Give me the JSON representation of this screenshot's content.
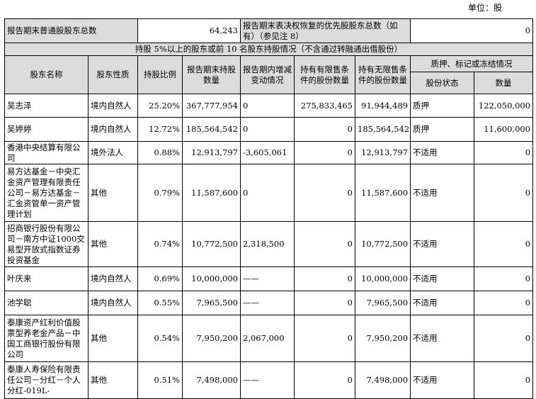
{
  "unit_label": "单位：股",
  "summary": {
    "common_label": "报告期末普通股股东总数",
    "common_value": "64,243",
    "preferred_label": "报告期末表决权恢复的优先股股东总数（如有）（参见注 8）",
    "preferred_value": "0"
  },
  "section_title": "持股 5%以上的股东或前 10 名股东持股情况（不含通过转融通出借股份）",
  "headers": {
    "name": "股东名称",
    "nature": "股东性质",
    "ratio": "持股比例",
    "shares_end": "报告期末持股数量",
    "change": "报告期内增减变动情况",
    "restricted": "持有有限售条件的股份数量",
    "unrestricted": "持有无限售条件的股份数量",
    "pledge_group": "质押、标记或冻结情况",
    "pledge_status": "股份状态",
    "pledge_qty": "数量"
  },
  "rows": [
    {
      "name": "吴志泽",
      "nature": "境内自然人",
      "ratio": "25.20%",
      "shares": "367,777,954",
      "change": "0",
      "restricted": "275,833,465",
      "unrestricted": "91,944,489",
      "status": "质押",
      "qty": "122,050,000"
    },
    {
      "name": "吴婷婷",
      "nature": "境内自然人",
      "ratio": "12.72%",
      "shares": "185,564,542",
      "change": "0",
      "restricted": "0",
      "unrestricted": "185,564,542",
      "status": "质押",
      "qty": "11,600,000"
    },
    {
      "name": "香港中央结算有限公司",
      "nature": "境外法人",
      "ratio": "0.88%",
      "shares": "12,913,797",
      "change": "-3,605,061",
      "restricted": "0",
      "unrestricted": "12,913,797",
      "status": "不适用",
      "qty": "0"
    },
    {
      "name": "易方达基金－中央汇金资产管理有限责任公司－易方达基金－汇金资管单一资产管理计划",
      "nature": "其他",
      "ratio": "0.79%",
      "shares": "11,587,600",
      "change": "0",
      "restricted": "0",
      "unrestricted": "11,587,600",
      "status": "不适用",
      "qty": "0"
    },
    {
      "name": "招商银行股份有限公司－南方中证1000交易型开放式指数证券投资基金",
      "nature": "其他",
      "ratio": "0.74%",
      "shares": "10,772,500",
      "change": "2,318,500",
      "restricted": "0",
      "unrestricted": "10,772,500",
      "status": "不适用",
      "qty": "0"
    },
    {
      "name": "叶庆来",
      "nature": "境内自然人",
      "ratio": "0.69%",
      "shares": "10,000,000",
      "change": "——",
      "restricted": "0",
      "unrestricted": "10,000,000",
      "status": "不适用",
      "qty": "0"
    },
    {
      "name": "池学聪",
      "nature": "境内自然人",
      "ratio": "0.55%",
      "shares": "7,965,500",
      "change": "——",
      "restricted": "0",
      "unrestricted": "7,965,500",
      "status": "不适用",
      "qty": "0"
    },
    {
      "name": "泰康资产红利价值股票型养老金产品－中国工商银行股份有限公司",
      "nature": "其他",
      "ratio": "0.54%",
      "shares": "7,950,200",
      "change": "2,067,000",
      "restricted": "0",
      "unrestricted": "7,950,200",
      "status": "不适用",
      "qty": "0"
    },
    {
      "name": "泰康人寿保险有限责任公司－分红－个人分红-019L-",
      "nature": "其他",
      "ratio": "0.51%",
      "shares": "7,498,000",
      "change": "——",
      "restricted": "0",
      "unrestricted": "7,498,000",
      "status": "不适用",
      "qty": "0"
    }
  ]
}
